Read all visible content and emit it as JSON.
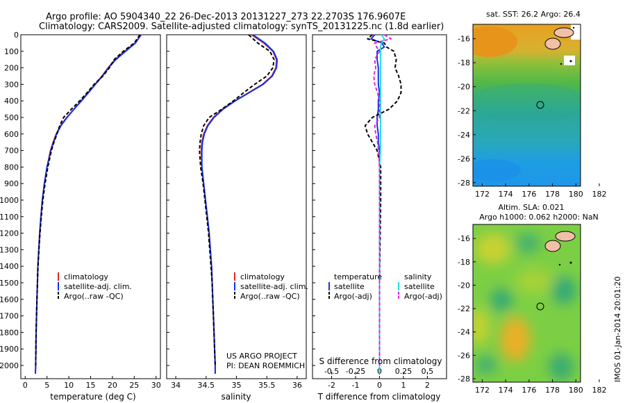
{
  "header": {
    "line1": "Argo profile: AO 5904340_22 26-Dec-2013 20131227_273 22.2703S 176.9607E",
    "line2": "Climatology: CARS2009. Satellite-adjusted climatology: synTS_20131225.nc (1.8d earlier)"
  },
  "colors": {
    "climatology": "#e8221b",
    "satellite": "#1133ee",
    "argo": "#000000",
    "satellite_s": "#22dddd",
    "argo_s": "#dd22dd"
  },
  "depth_ticks": [
    "0",
    "100",
    "200",
    "300",
    "400",
    "500",
    "600",
    "700",
    "800",
    "900",
    "1000",
    "1100",
    "1200",
    "1300",
    "1400",
    "1500",
    "1600",
    "1700",
    "1800",
    "1900",
    "2000"
  ],
  "panel1": {
    "xlabel": "temperature (deg C)",
    "xticks": [
      "0",
      "5",
      "10",
      "15",
      "20",
      "25",
      "30"
    ],
    "legend": [
      "climatology",
      "satellite-adj. clim.",
      "Argo(..raw -QC)"
    ]
  },
  "panel2": {
    "xlabel": "salinity",
    "xticks": [
      "34",
      "34.5",
      "35",
      "35.5",
      "36"
    ],
    "legend": [
      "climatology",
      "satellite-adj. clim.",
      "Argo(..raw -QC)"
    ],
    "project_line1": "US ARGO PROJECT",
    "project_line2": "PI: DEAN ROEMMICH"
  },
  "panel3": {
    "top_xlabel": "S difference from climatology",
    "top_xticks": [
      "-0.5",
      "-0.25",
      "0",
      "0.25",
      "0.5"
    ],
    "xlabel": "T difference from climatology",
    "xticks": [
      "-2",
      "-1",
      "0",
      "1",
      "2"
    ],
    "legend_temp_title": "temperature",
    "legend_sal_title": "salinity",
    "legend_temp": [
      "satellite",
      "Argo(-adj)"
    ],
    "legend_sal": [
      "satellite",
      "Argo(-adj)"
    ]
  },
  "map1": {
    "title": "sat. SST: 26.2  Argo: 26.4",
    "yticks": [
      "-16",
      "-18",
      "-20",
      "-22",
      "-24",
      "-26",
      "-28"
    ],
    "xticks": [
      "172",
      "174",
      "176",
      "178",
      "180",
      "182"
    ]
  },
  "map2": {
    "title1": "Altim. SLA: 0.021",
    "title2": "Argo h1000: 0.062  h2000: NaN",
    "yticks": [
      "-16",
      "-18",
      "-20",
      "-22",
      "-24",
      "-26",
      "-28"
    ],
    "xticks": [
      "172",
      "174",
      "176",
      "178",
      "180",
      "182"
    ]
  },
  "stamp": "IMOS 01-Jan-2014 20:01:20",
  "chart_data": [
    {
      "type": "line",
      "xlabel": "temperature (deg C)",
      "ylabel": "",
      "xlim": [
        -1,
        31
      ],
      "ylim": [
        2080,
        0
      ],
      "depth": [
        0,
        50,
        100,
        150,
        200,
        250,
        300,
        350,
        400,
        450,
        500,
        550,
        600,
        650,
        700,
        800,
        900,
        1000,
        1100,
        1200,
        1300,
        1400,
        1500,
        1600,
        1700,
        1800,
        1900,
        2000,
        2050
      ],
      "series": [
        {
          "name": "climatology",
          "values": [
            26.6,
            25.2,
            22.8,
            20.6,
            19.0,
            17.6,
            16.0,
            14.4,
            12.8,
            11.2,
            9.5,
            8.1,
            7.1,
            6.4,
            5.8,
            5.0,
            4.4,
            3.9,
            3.6,
            3.3,
            3.1,
            2.9,
            2.8,
            2.7,
            2.6,
            2.5,
            2.45,
            2.4,
            2.35
          ]
        },
        {
          "name": "satellite-adj. clim.",
          "values": [
            26.5,
            25.3,
            23.0,
            20.8,
            19.1,
            17.7,
            16.1,
            14.5,
            12.9,
            11.2,
            9.6,
            8.2,
            7.2,
            6.5,
            5.9,
            5.0,
            4.4,
            3.95,
            3.6,
            3.35,
            3.1,
            2.9,
            2.8,
            2.7,
            2.6,
            2.5,
            2.45,
            2.4,
            2.35
          ]
        },
        {
          "name": "Argo(..raw -QC)",
          "values": [
            26.3,
            25.0,
            22.5,
            20.4,
            19.3,
            17.8,
            15.8,
            14.2,
            12.5,
            10.6,
            8.8,
            7.9,
            7.3,
            6.6,
            6.0,
            5.2,
            4.55,
            4.05,
            3.7,
            3.4,
            3.15,
            2.95,
            2.8,
            2.7,
            2.6,
            2.5,
            2.45,
            2.4,
            null
          ]
        }
      ]
    },
    {
      "type": "line",
      "xlabel": "salinity",
      "ylabel": "",
      "xlim": [
        33.85,
        36.15
      ],
      "ylim": [
        2080,
        0
      ],
      "depth": [
        0,
        50,
        100,
        150,
        200,
        250,
        300,
        350,
        400,
        450,
        500,
        550,
        600,
        650,
        700,
        800,
        900,
        1000,
        1100,
        1200,
        1300,
        1400,
        1500,
        1600,
        1700,
        1800,
        1900,
        2000,
        2050
      ],
      "series": [
        {
          "name": "climatology",
          "values": [
            35.25,
            35.45,
            35.6,
            35.66,
            35.65,
            35.58,
            35.43,
            35.2,
            34.97,
            34.77,
            34.62,
            34.52,
            34.46,
            34.43,
            34.42,
            34.43,
            34.46,
            34.49,
            34.52,
            34.55,
            34.57,
            34.59,
            34.6,
            34.61,
            34.62,
            34.63,
            34.64,
            34.65,
            34.65
          ]
        },
        {
          "name": "satellite-adj. clim.",
          "values": [
            35.27,
            35.47,
            35.61,
            35.67,
            35.66,
            35.59,
            35.44,
            35.21,
            34.98,
            34.78,
            34.63,
            34.53,
            34.47,
            34.44,
            34.43,
            34.43,
            34.46,
            34.49,
            34.52,
            34.55,
            34.57,
            34.59,
            34.6,
            34.61,
            34.62,
            34.63,
            34.64,
            34.65,
            34.65
          ]
        },
        {
          "name": "Argo(..raw -QC)",
          "values": [
            35.2,
            35.35,
            35.55,
            35.62,
            35.6,
            35.5,
            35.3,
            35.12,
            34.95,
            34.76,
            34.55,
            34.46,
            34.42,
            34.4,
            34.39,
            34.41,
            34.45,
            34.48,
            34.51,
            34.54,
            34.56,
            34.58,
            34.6,
            34.61,
            34.62,
            34.63,
            34.64,
            34.65,
            null
          ]
        }
      ]
    },
    {
      "type": "line",
      "xlabel": "T difference from climatology",
      "x2label": "S difference from climatology",
      "xlim": [
        -2.8,
        2.8
      ],
      "x2lim": [
        -0.7,
        0.7
      ],
      "ylim": [
        2080,
        0
      ],
      "depth": [
        0,
        25,
        50,
        75,
        100,
        150,
        200,
        250,
        300,
        350,
        400,
        450,
        500,
        550,
        600,
        650,
        700,
        800,
        1000,
        1500,
        2000,
        2050
      ],
      "series": [
        {
          "name": "temperature satellite",
          "axis": "T",
          "values": [
            -0.2,
            -0.35,
            0.1,
            0.2,
            -0.1,
            -0.1,
            -0.05,
            -0.05,
            -0.05,
            0.0,
            -0.05,
            -0.05,
            -0.1,
            -0.1,
            -0.05,
            -0.05,
            0.0,
            0.0,
            0.0,
            0.0,
            0.0,
            0.0
          ]
        },
        {
          "name": "temperature Argo(-adj)",
          "axis": "T",
          "values": [
            -0.3,
            -0.5,
            0.2,
            0.3,
            0.6,
            0.7,
            0.65,
            0.8,
            0.9,
            0.9,
            0.75,
            0.4,
            -0.3,
            -0.6,
            -0.5,
            -0.3,
            -0.1,
            0.05,
            0.05,
            0.0,
            0.0,
            null
          ]
        },
        {
          "name": "salinity satellite",
          "axis": "S",
          "values": [
            0.02,
            0.05,
            0.02,
            0.01,
            0.01,
            0.01,
            0.01,
            0.01,
            0.01,
            0.01,
            0.01,
            0.01,
            0.01,
            0.01,
            0.01,
            0.01,
            0.01,
            0.0,
            0.0,
            0.0,
            0.0,
            0.0
          ]
        },
        {
          "name": "salinity Argo(-adj)",
          "axis": "S",
          "values": [
            0.05,
            0.12,
            -0.05,
            -0.03,
            0.0,
            -0.05,
            -0.04,
            -0.06,
            -0.05,
            -0.02,
            0.0,
            0.0,
            0.0,
            -0.05,
            -0.04,
            -0.02,
            -0.01,
            0.0,
            0.0,
            0.0,
            0.0,
            null
          ]
        }
      ]
    }
  ]
}
